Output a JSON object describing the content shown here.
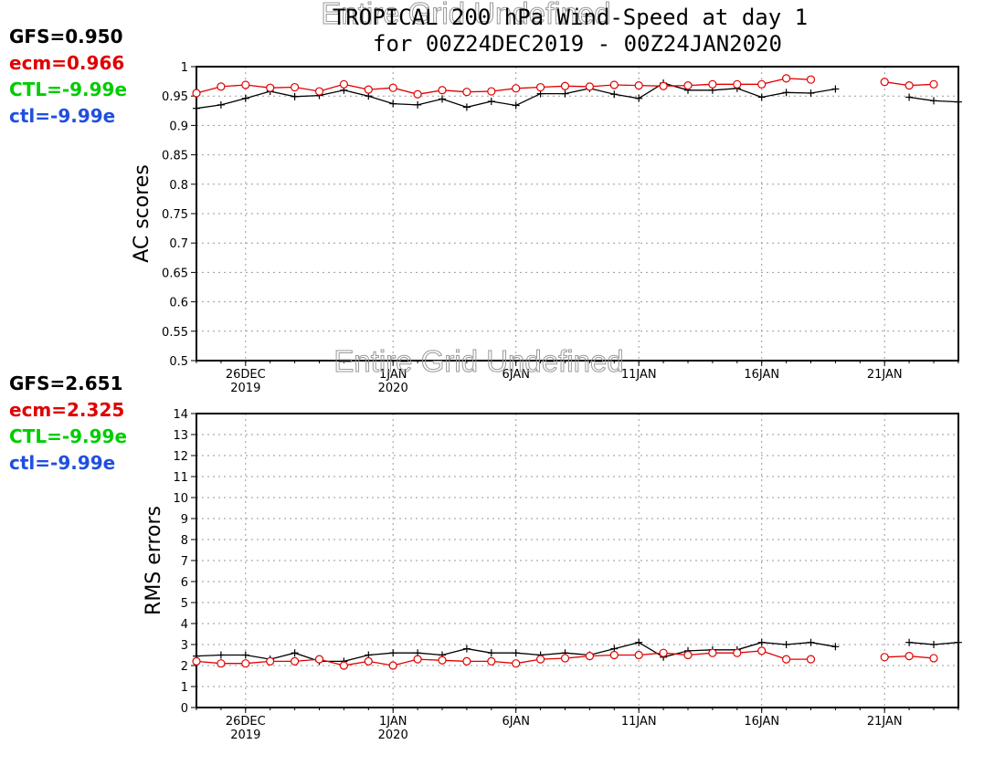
{
  "header": {
    "title_line1": "TROPICAL 200 hPa Wind-Speed at day 1",
    "title_line2": "for 00Z24DEC2019 - 00Z24JAN2020",
    "overlay_text": "Entire Grid Undefined"
  },
  "colors": {
    "gfs": "#000000",
    "ecm": "#e00000",
    "ctl_upper": "#00cc00",
    "ctl_lower": "#1f4fe0"
  },
  "chart_data": [
    {
      "type": "line",
      "ylabel": "AC scores",
      "ylim": [
        0.5,
        1.0
      ],
      "yticks": [
        0.5,
        0.55,
        0.6,
        0.65,
        0.7,
        0.75,
        0.8,
        0.85,
        0.9,
        0.95,
        1
      ],
      "ytick_labels": [
        "0.5",
        "0.55",
        "0.6",
        "0.65",
        "0.7",
        "0.75",
        "0.8",
        "0.85",
        "0.9",
        "0.95",
        "1"
      ],
      "x_dates": [
        "24DEC",
        "25DEC",
        "26DEC",
        "27DEC",
        "28DEC",
        "29DEC",
        "30DEC",
        "31DEC",
        "1JAN",
        "2JAN",
        "3JAN",
        "4JAN",
        "5JAN",
        "6JAN",
        "7JAN",
        "8JAN",
        "9JAN",
        "10JAN",
        "11JAN",
        "12JAN",
        "13JAN",
        "14JAN",
        "15JAN",
        "16JAN",
        "17JAN",
        "18JAN",
        "19JAN",
        "20JAN",
        "21JAN",
        "22JAN",
        "23JAN",
        "24JAN"
      ],
      "xticks": [
        {
          "date": "26DEC",
          "line1": "26DEC",
          "line2": "2019"
        },
        {
          "date": "1JAN",
          "line1": "1JAN",
          "line2": "2020"
        },
        {
          "date": "6JAN",
          "line1": "6JAN",
          "line2": ""
        },
        {
          "date": "11JAN",
          "line1": "11JAN",
          "line2": ""
        },
        {
          "date": "16JAN",
          "line1": "16JAN",
          "line2": ""
        },
        {
          "date": "21JAN",
          "line1": "21JAN",
          "line2": ""
        }
      ],
      "legend": [
        {
          "label": "GFS=0.950",
          "color": "#000000"
        },
        {
          "label": "ecm=0.966",
          "color": "#e00000"
        },
        {
          "label": "CTL=-9.99e",
          "color": "#00cc00"
        },
        {
          "label": "ctl=-9.99e",
          "color": "#1f4fe0"
        }
      ],
      "series": [
        {
          "name": "GFS",
          "values": [
            0.929,
            0.935,
            0.946,
            0.958,
            0.949,
            0.951,
            0.96,
            0.95,
            0.937,
            0.935,
            0.945,
            0.931,
            0.941,
            0.934,
            0.954,
            0.954,
            0.963,
            0.953,
            0.946,
            0.972,
            0.96,
            0.96,
            0.963,
            0.948,
            0.956,
            0.955,
            0.962,
            null,
            null,
            0.948,
            0.942,
            0.94
          ]
        },
        {
          "name": "ecm",
          "values": [
            0.955,
            0.966,
            0.969,
            0.964,
            0.965,
            0.958,
            0.97,
            0.961,
            0.964,
            0.953,
            0.96,
            0.957,
            0.958,
            0.963,
            0.965,
            0.967,
            0.966,
            0.969,
            0.968,
            0.967,
            0.968,
            0.97,
            0.97,
            0.97,
            0.98,
            0.978,
            null,
            null,
            0.974,
            0.968,
            0.97,
            null
          ]
        }
      ]
    },
    {
      "type": "line",
      "ylabel": "RMS errors",
      "ylim": [
        0,
        14
      ],
      "yticks": [
        0,
        1,
        2,
        3,
        4,
        5,
        6,
        7,
        8,
        9,
        10,
        11,
        12,
        13,
        14
      ],
      "ytick_labels": [
        "0",
        "1",
        "2",
        "3",
        "4",
        "5",
        "6",
        "7",
        "8",
        "9",
        "10",
        "11",
        "12",
        "13",
        "14"
      ],
      "x_dates": [
        "24DEC",
        "25DEC",
        "26DEC",
        "27DEC",
        "28DEC",
        "29DEC",
        "30DEC",
        "31DEC",
        "1JAN",
        "2JAN",
        "3JAN",
        "4JAN",
        "5JAN",
        "6JAN",
        "7JAN",
        "8JAN",
        "9JAN",
        "10JAN",
        "11JAN",
        "12JAN",
        "13JAN",
        "14JAN",
        "15JAN",
        "16JAN",
        "17JAN",
        "18JAN",
        "19JAN",
        "20JAN",
        "21JAN",
        "22JAN",
        "23JAN",
        "24JAN"
      ],
      "xticks": [
        {
          "date": "26DEC",
          "line1": "26DEC",
          "line2": "2019"
        },
        {
          "date": "1JAN",
          "line1": "1JAN",
          "line2": "2020"
        },
        {
          "date": "6JAN",
          "line1": "6JAN",
          "line2": ""
        },
        {
          "date": "11JAN",
          "line1": "11JAN",
          "line2": ""
        },
        {
          "date": "16JAN",
          "line1": "16JAN",
          "line2": ""
        },
        {
          "date": "21JAN",
          "line1": "21JAN",
          "line2": ""
        }
      ],
      "legend": [
        {
          "label": "GFS=2.651",
          "color": "#000000"
        },
        {
          "label": "ecm=2.325",
          "color": "#e00000"
        },
        {
          "label": "CTL=-9.99e",
          "color": "#00cc00"
        },
        {
          "label": "ctl=-9.99e",
          "color": "#1f4fe0"
        }
      ],
      "series": [
        {
          "name": "GFS",
          "values": [
            2.45,
            2.5,
            2.5,
            2.3,
            2.6,
            2.2,
            2.2,
            2.5,
            2.6,
            2.6,
            2.5,
            2.8,
            2.6,
            2.6,
            2.5,
            2.6,
            2.5,
            2.8,
            3.1,
            2.4,
            2.7,
            2.75,
            2.75,
            3.1,
            3.0,
            3.1,
            2.9,
            null,
            null,
            3.1,
            3.0,
            3.1
          ]
        },
        {
          "name": "ecm",
          "values": [
            2.2,
            2.1,
            2.1,
            2.2,
            2.2,
            2.3,
            2.0,
            2.2,
            2.0,
            2.3,
            2.25,
            2.2,
            2.2,
            2.1,
            2.3,
            2.35,
            2.45,
            2.5,
            2.5,
            2.6,
            2.5,
            2.6,
            2.6,
            2.7,
            2.3,
            2.3,
            null,
            null,
            2.4,
            2.45,
            2.35,
            null
          ]
        }
      ]
    }
  ]
}
